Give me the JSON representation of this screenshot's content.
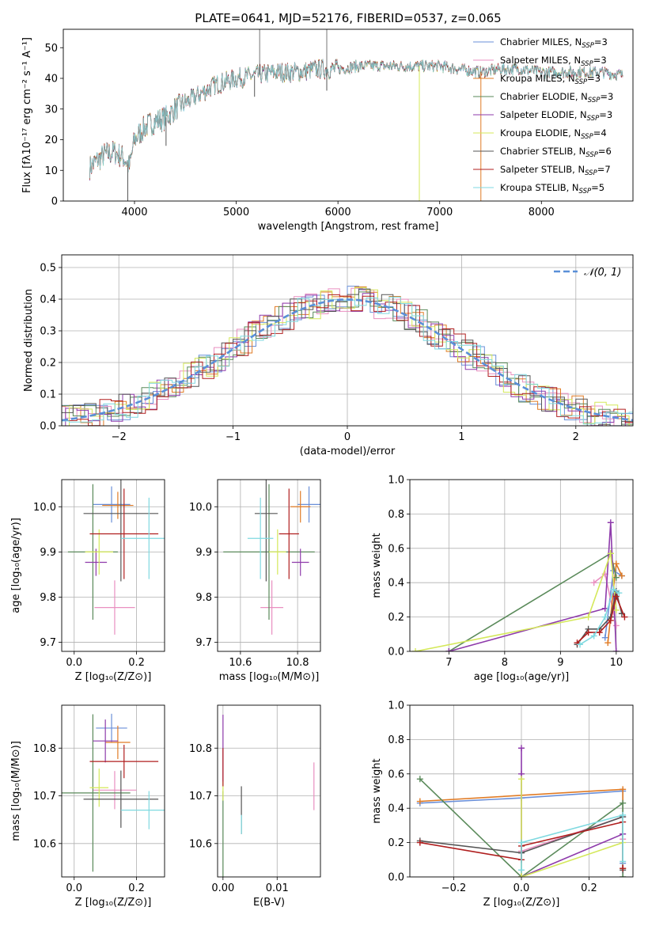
{
  "title": "PLATE=0641, MJD=52176, FIBERID=0537, z=0.065",
  "colors": {
    "Chabrier MILES": "#6a8fd8",
    "Salpeter MILES": "#e98fc0",
    "Kroupa MILES": "#e07b25",
    "Chabrier ELODIE": "#5a8a5a",
    "Salpeter ELODIE": "#8e3aab",
    "Kroupa ELODIE": "#d4e85a",
    "Chabrier STELIB": "#555555",
    "Salpeter STELIB": "#b01f1f",
    "Kroupa STELIB": "#7fd9e0",
    "normal": "#5a8fd8",
    "grid": "#b0b0b0"
  },
  "chart_data": [
    {
      "id": "spectrum",
      "type": "line",
      "xlabel": "wavelength [Angstrom, rest frame]",
      "ylabel": "Flux [fλ10⁻¹⁷ erg cm⁻² s⁻¹ A⁻¹]",
      "xlim": [
        3300,
        8900
      ],
      "ylim": [
        0,
        56
      ],
      "xticks": [
        "4000",
        "5000",
        "6000",
        "7000",
        "8000"
      ],
      "yticks": [
        "0",
        "10",
        "20",
        "30",
        "40",
        "50"
      ],
      "grid": false,
      "legend_position": "top-right",
      "series": [
        {
          "name": "Chabrier MILES, N",
          "sub": "SSP",
          "suffix": "=3"
        },
        {
          "name": "Salpeter MILES, N",
          "sub": "SSP",
          "suffix": "=3"
        },
        {
          "name": "Kroupa MILES, N",
          "sub": "SSP",
          "suffix": "=3"
        },
        {
          "name": "Chabrier ELODIE, N",
          "sub": "SSP",
          "suffix": "=3"
        },
        {
          "name": "Salpeter ELODIE, N",
          "sub": "SSP",
          "suffix": "=3"
        },
        {
          "name": "Kroupa ELODIE, N",
          "sub": "SSP",
          "suffix": "=4"
        },
        {
          "name": "Chabrier STELIB, N",
          "sub": "SSP",
          "suffix": "=6"
        },
        {
          "name": "Salpeter STELIB, N",
          "sub": "SSP",
          "suffix": "=7"
        },
        {
          "name": "Kroupa STELIB, N",
          "sub": "SSP",
          "suffix": "=5"
        }
      ],
      "continuum": {
        "x": [
          3560,
          3700,
          3800,
          3900,
          3950,
          4000,
          4100,
          4200,
          4300,
          4400,
          4500,
          4600,
          4700,
          4800,
          4900,
          5000,
          5200,
          5400,
          5600,
          5800,
          6000,
          6200,
          6400,
          6600,
          6800,
          7000,
          7200,
          7400,
          7600,
          7800,
          8000,
          8200,
          8400,
          8600,
          8800
        ],
        "y": [
          11,
          15,
          16,
          14,
          11,
          20,
          24,
          26,
          27,
          30,
          32,
          34,
          36,
          38,
          39,
          40,
          41,
          42,
          42,
          43,
          43,
          44,
          44,
          44,
          44,
          44,
          43,
          42,
          43,
          43,
          42,
          42,
          42,
          42,
          41
        ]
      },
      "dips": [
        {
          "x": 3934,
          "y": 0
        },
        {
          "x": 6800,
          "y": 0
        },
        {
          "x": 7405,
          "y": 0
        },
        {
          "x": 5890,
          "y": 36
        },
        {
          "x": 5180,
          "y": 34
        },
        {
          "x": 4310,
          "y": 18
        }
      ],
      "spikes": [
        {
          "x": 5230,
          "y": 56
        },
        {
          "x": 5890,
          "y": 56
        }
      ]
    },
    {
      "id": "residuals",
      "type": "histogram",
      "xlabel": "(data-model)/error",
      "ylabel": "Normed distribution",
      "xlim": [
        -2.5,
        2.5
      ],
      "ylim": [
        0,
        0.54
      ],
      "xticks": [
        "−2",
        "−1",
        "0",
        "1",
        "2"
      ],
      "yticks": [
        "0.0",
        "0.1",
        "0.2",
        "0.3",
        "0.4",
        "0.5"
      ],
      "grid": true,
      "legend": "𝒩(0, 1)",
      "legend_position": "top-right",
      "bin_width": 0.1
    },
    {
      "id": "age-vs-Z",
      "type": "scatter",
      "xlabel": "Z [log₁₀(Z/Z⊙)]",
      "ylabel": "age  [log₁₀(age/yr)]",
      "xlim": [
        -0.04,
        0.29
      ],
      "ylim": [
        9.68,
        10.06
      ],
      "xticks": [
        "0.0",
        "0.2"
      ],
      "yticks": [
        "9.7",
        "9.8",
        "9.9",
        "10.0"
      ],
      "grid": true,
      "points": [
        {
          "series": "Chabrier MILES",
          "x": 0.12,
          "y": 10.005,
          "xerr": 0.06,
          "yerr": 0.04
        },
        {
          "series": "Salpeter MILES",
          "x": 0.13,
          "y": 9.777,
          "xerr": 0.065,
          "yerr": 0.06
        },
        {
          "series": "Kroupa MILES",
          "x": 0.14,
          "y": 10.003,
          "xerr": 0.05,
          "yerr": 0.03
        },
        {
          "series": "Chabrier ELODIE",
          "x": 0.06,
          "y": 9.9,
          "xerr": 0.08,
          "yerr": 0.15
        },
        {
          "series": "Salpeter ELODIE",
          "x": 0.07,
          "y": 9.877,
          "xerr": 0.035,
          "yerr": 0.03
        },
        {
          "series": "Kroupa ELODIE",
          "x": 0.08,
          "y": 9.9,
          "xerr": 0.045,
          "yerr": 0.05
        },
        {
          "series": "Chabrier STELIB",
          "x": 0.15,
          "y": 9.985,
          "xerr": 0.12,
          "yerr": 0.15
        },
        {
          "series": "Salpeter STELIB",
          "x": 0.16,
          "y": 9.94,
          "xerr": 0.11,
          "yerr": 0.1
        },
        {
          "series": "Kroupa STELIB",
          "x": 0.24,
          "y": 9.93,
          "xerr": 0.09,
          "yerr": 0.09
        }
      ]
    },
    {
      "id": "age-vs-mass",
      "type": "scatter",
      "xlabel": "mass [log₁₀(M/M⊙)]",
      "ylabel": "",
      "xlim": [
        10.52,
        10.88
      ],
      "ylim": [
        9.68,
        10.06
      ],
      "xticks": [
        "10.6",
        "10.8"
      ],
      "yticks": [
        "9.7",
        "9.8",
        "9.9",
        "10.0"
      ],
      "grid": true,
      "points": [
        {
          "series": "Chabrier MILES",
          "x": 10.84,
          "y": 10.005,
          "xerr": 0.04,
          "yerr": 0.04
        },
        {
          "series": "Salpeter MILES",
          "x": 10.71,
          "y": 9.777,
          "xerr": 0.04,
          "yerr": 0.06
        },
        {
          "series": "Kroupa MILES",
          "x": 10.81,
          "y": 10.0,
          "xerr": 0.035,
          "yerr": 0.035
        },
        {
          "series": "Chabrier ELODIE",
          "x": 10.7,
          "y": 9.9,
          "xerr": 0.16,
          "yerr": 0.15
        },
        {
          "series": "Salpeter ELODIE",
          "x": 10.81,
          "y": 9.877,
          "xerr": 0.03,
          "yerr": 0.03
        },
        {
          "series": "Kroupa ELODIE",
          "x": 10.73,
          "y": 9.9,
          "xerr": 0.03,
          "yerr": 0.05
        },
        {
          "series": "Chabrier STELIB",
          "x": 10.69,
          "y": 9.985,
          "xerr": 0.04,
          "yerr": 0.15
        },
        {
          "series": "Salpeter STELIB",
          "x": 10.77,
          "y": 9.94,
          "xerr": 0.035,
          "yerr": 0.1
        },
        {
          "series": "Kroupa STELIB",
          "x": 10.67,
          "y": 9.93,
          "xerr": 0.045,
          "yerr": 0.09
        }
      ]
    },
    {
      "id": "weight-vs-age",
      "type": "line",
      "xlabel": "age  [log₁₀(age/yr)]",
      "ylabel": "mass weight",
      "xlim": [
        6.3,
        10.3
      ],
      "ylim": [
        0,
        1
      ],
      "xticks": [
        "7",
        "8",
        "9",
        "10"
      ],
      "yticks": [
        "0.0",
        "0.2",
        "0.4",
        "0.6",
        "0.8",
        "1.0"
      ],
      "grid": true,
      "series": [
        {
          "series": "Chabrier MILES",
          "x": [
            9.8,
            9.95,
            10.1
          ],
          "y": [
            0.08,
            0.47,
            0.44
          ]
        },
        {
          "series": "Salpeter MILES",
          "x": [
            9.6,
            9.8,
            10.0
          ],
          "y": [
            0.4,
            0.45,
            0.15
          ]
        },
        {
          "series": "Kroupa MILES",
          "x": [
            9.85,
            10.0,
            10.1
          ],
          "y": [
            0.05,
            0.51,
            0.44
          ]
        },
        {
          "series": "Chabrier ELODIE",
          "x": [
            7.0,
            9.9,
            10.0
          ],
          "y": [
            0.0,
            0.57,
            0.43
          ]
        },
        {
          "series": "Salpeter ELODIE",
          "x": [
            7.0,
            9.8,
            9.9,
            10.0
          ],
          "y": [
            0.0,
            0.25,
            0.75,
            0.0
          ]
        },
        {
          "series": "Kroupa ELODIE",
          "x": [
            6.4,
            9.5,
            9.9,
            10.0
          ],
          "y": [
            0.0,
            0.2,
            0.57,
            0.24
          ]
        },
        {
          "series": "Chabrier STELIB",
          "x": [
            9.3,
            9.5,
            9.7,
            9.9,
            10.0,
            10.1
          ],
          "y": [
            0.04,
            0.13,
            0.13,
            0.2,
            0.35,
            0.22
          ]
        },
        {
          "series": "Salpeter STELIB",
          "x": [
            9.3,
            9.5,
            9.7,
            9.9,
            10.0,
            10.15
          ],
          "y": [
            0.05,
            0.11,
            0.11,
            0.18,
            0.32,
            0.2
          ]
        },
        {
          "series": "Kroupa STELIB",
          "x": [
            9.35,
            9.6,
            9.8,
            9.95,
            10.05
          ],
          "y": [
            0.04,
            0.09,
            0.2,
            0.36,
            0.34
          ]
        }
      ]
    },
    {
      "id": "mass-vs-Z",
      "type": "scatter",
      "xlabel": "Z [log₁₀(Z/Z⊙)]",
      "ylabel": "mass [log₁₀(M/M⊙)]",
      "xlim": [
        -0.04,
        0.29
      ],
      "ylim": [
        10.53,
        10.89
      ],
      "xticks": [
        "0.0",
        "0.2"
      ],
      "yticks": [
        "10.6",
        "10.7",
        "10.8"
      ],
      "grid": true,
      "points": [
        {
          "series": "Chabrier MILES",
          "x": 0.12,
          "y": 10.842,
          "xerr": 0.05,
          "yerr": 0.03
        },
        {
          "series": "Salpeter MILES",
          "x": 0.13,
          "y": 10.712,
          "xerr": 0.07,
          "yerr": 0.04
        },
        {
          "series": "Kroupa MILES",
          "x": 0.14,
          "y": 10.812,
          "xerr": 0.04,
          "yerr": 0.035
        },
        {
          "series": "Chabrier ELODIE",
          "x": 0.06,
          "y": 10.706,
          "xerr": 0.12,
          "yerr": 0.165
        },
        {
          "series": "Salpeter ELODIE",
          "x": 0.1,
          "y": 10.815,
          "xerr": 0.04,
          "yerr": 0.045
        },
        {
          "series": "Kroupa ELODIE",
          "x": 0.08,
          "y": 10.717,
          "xerr": 0.03,
          "yerr": 0.04
        },
        {
          "series": "Chabrier STELIB",
          "x": 0.15,
          "y": 10.693,
          "xerr": 0.12,
          "yerr": 0.06
        },
        {
          "series": "Salpeter STELIB",
          "x": 0.16,
          "y": 10.772,
          "xerr": 0.11,
          "yerr": 0.035
        },
        {
          "series": "Kroupa STELIB",
          "x": 0.24,
          "y": 10.67,
          "xerr": 0.09,
          "yerr": 0.04
        }
      ]
    },
    {
      "id": "mass-vs-EBV",
      "type": "scatter",
      "xlabel": "E(B-V)",
      "ylabel": "",
      "xlim": [
        -0.001,
        0.018
      ],
      "ylim": [
        10.53,
        10.89
      ],
      "xticks": [
        "0.00",
        "0.01"
      ],
      "yticks": [
        "10.6",
        "10.7",
        "10.8"
      ],
      "grid": true,
      "points": [
        {
          "series": "Chabrier ELODIE",
          "x": 0.0,
          "y": 10.62,
          "xerr": 0.0,
          "yerr": 0.09
        },
        {
          "series": "Salpeter ELODIE",
          "x": 0.0,
          "y": 10.8,
          "xerr": 0.0,
          "yerr": 0.07
        },
        {
          "series": "Kroupa ELODIE",
          "x": 0.0,
          "y": 10.71,
          "xerr": 0.0,
          "yerr": 0.02
        },
        {
          "series": "Salpeter STELIB",
          "x": 0.0,
          "y": 10.76,
          "xerr": 0.0,
          "yerr": 0.04
        },
        {
          "series": "Chabrier STELIB",
          "x": 0.0034,
          "y": 10.67,
          "xerr": 0.0,
          "yerr": 0.05
        },
        {
          "series": "Kroupa STELIB",
          "x": 0.0034,
          "y": 10.64,
          "xerr": 0.0,
          "yerr": 0.02
        },
        {
          "series": "Salpeter MILES",
          "x": 0.0168,
          "y": 10.72,
          "xerr": 0.0,
          "yerr": 0.05
        }
      ]
    },
    {
      "id": "weight-vs-Z",
      "type": "line",
      "xlabel": "Z [log₁₀(Z/Z⊙)]",
      "ylabel": "mass weight",
      "xlim": [
        -0.33,
        0.33
      ],
      "ylim": [
        0,
        1
      ],
      "xticks": [
        "−0.2",
        "0.0",
        "0.2"
      ],
      "yticks": [
        "0.0",
        "0.2",
        "0.4",
        "0.6",
        "0.8",
        "1.0"
      ],
      "grid": true,
      "series": [
        {
          "series": "Chabrier MILES",
          "x": [
            -0.3,
            0.0,
            0.3,
            0.3
          ],
          "y": [
            0.43,
            0.46,
            0.5,
            0.08
          ]
        },
        {
          "series": "Salpeter MILES",
          "x": [
            0.0,
            0.3,
            0.3
          ],
          "y": [
            0.15,
            0.35,
            0.22
          ]
        },
        {
          "series": "Kroupa MILES",
          "x": [
            -0.3,
            0.3,
            0.3
          ],
          "y": [
            0.44,
            0.51,
            0.05
          ]
        },
        {
          "series": "Chabrier ELODIE",
          "x": [
            -0.3,
            0.0,
            0.3,
            0.3
          ],
          "y": [
            0.57,
            0.0,
            0.43,
            0.0
          ]
        },
        {
          "series": "Salpeter ELODIE",
          "x": [
            0.0,
            0.0,
            0.0,
            0.3
          ],
          "y": [
            0.75,
            0.6,
            0.0,
            0.25
          ]
        },
        {
          "series": "Kroupa ELODIE",
          "x": [
            0.0,
            0.0,
            0.3
          ],
          "y": [
            0.57,
            0.0,
            0.2
          ]
        },
        {
          "series": "Chabrier STELIB",
          "x": [
            -0.3,
            0.0,
            0.3,
            0.3
          ],
          "y": [
            0.21,
            0.14,
            0.35,
            0.04
          ]
        },
        {
          "series": "Salpeter STELIB",
          "x": [
            -0.3,
            0.0,
            0.0,
            0.3,
            0.3
          ],
          "y": [
            0.2,
            0.1,
            0.18,
            0.32,
            0.05
          ]
        },
        {
          "series": "Kroupa STELIB",
          "x": [
            0.0,
            0.0,
            0.3,
            0.3
          ],
          "y": [
            0.04,
            0.2,
            0.36,
            0.09
          ]
        }
      ]
    }
  ]
}
